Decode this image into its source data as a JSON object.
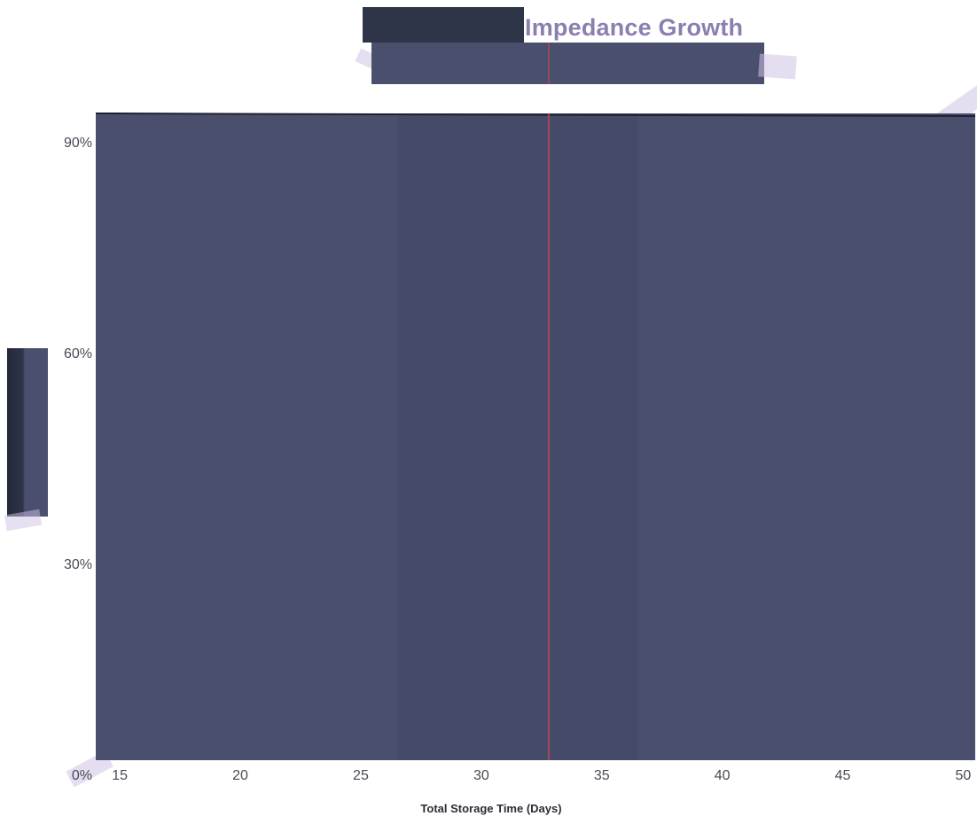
{
  "chart_data": {
    "type": "area",
    "title": "Impedance Growth",
    "xlabel": "Total Storage Time (Days)",
    "ylabel": "",
    "xlim": [
      14,
      50.5
    ],
    "ylim": [
      0,
      0.92
    ],
    "x_ticks": [
      15,
      20,
      25,
      30,
      35,
      40,
      45,
      50
    ],
    "x_tick_labels": [
      "15",
      "20",
      "25",
      "30",
      "35",
      "40",
      "45",
      "50"
    ],
    "y_ticks": [
      0,
      0.3,
      0.6,
      0.9
    ],
    "y_tick_labels": [
      "0%",
      "30%",
      "60%",
      "90%"
    ],
    "fill_color": "#4a4f6e",
    "reference_line": {
      "x": 32.8,
      "color": "#c0474d"
    },
    "grid": false,
    "legend": "none"
  }
}
